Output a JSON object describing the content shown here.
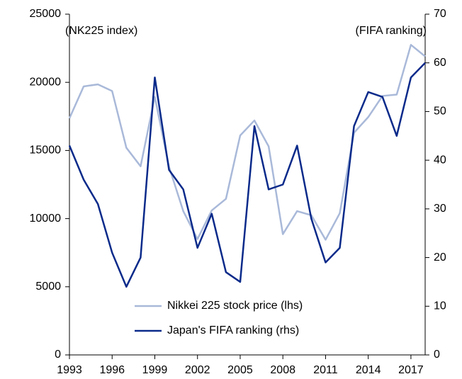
{
  "chart_data": {
    "type": "line",
    "annotations": [
      "(NK225 index)",
      "(FIFA ranking)"
    ],
    "x": [
      1993,
      1994,
      1995,
      1996,
      1997,
      1998,
      1999,
      2000,
      2001,
      2002,
      2003,
      2004,
      2005,
      2006,
      2007,
      2008,
      2009,
      2010,
      2011,
      2012,
      2013,
      2014,
      2015,
      2016,
      2017,
      2018
    ],
    "series": [
      {
        "name": "Nikkei 225 stock price (lhs)",
        "color": "#a9b9d9",
        "axis": "y",
        "values": [
          17360,
          19700,
          19850,
          19360,
          15200,
          13840,
          18930,
          13800,
          10550,
          8500,
          10600,
          11450,
          16100,
          17200,
          15300,
          8860,
          10550,
          10250,
          8450,
          10400,
          16300,
          17450,
          19000,
          19100,
          22750,
          21900
        ]
      },
      {
        "name": "Japan's FIFA ranking (rhs)",
        "color": "#0a2a8a",
        "axis": "y2",
        "values": [
          43,
          36,
          31,
          21,
          14,
          20,
          57,
          38,
          34,
          22,
          29,
          17,
          15,
          47,
          34,
          35,
          43,
          28,
          19,
          22,
          47,
          54,
          53,
          45,
          57,
          60
        ]
      }
    ],
    "xlim": [
      1993,
      2018
    ],
    "xticks": [
      1993,
      1996,
      1999,
      2002,
      2005,
      2008,
      2011,
      2014,
      2017
    ],
    "ylim": [
      0,
      25000
    ],
    "yticks": [
      0,
      5000,
      10000,
      15000,
      20000,
      25000
    ],
    "y2lim": [
      0,
      70
    ],
    "y2ticks": [
      0,
      10,
      20,
      30,
      40,
      50,
      60,
      70
    ],
    "legend": "bottom"
  }
}
